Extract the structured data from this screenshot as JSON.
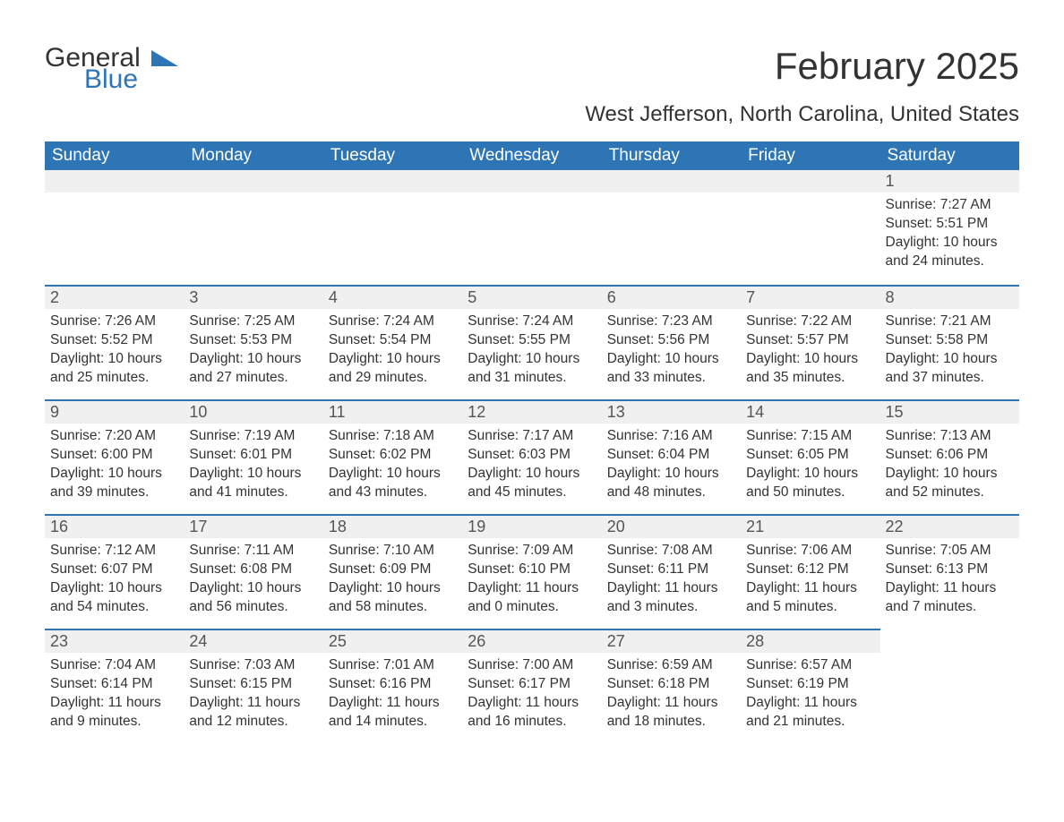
{
  "logo": {
    "text1": "General",
    "text2": "Blue",
    "color_dark": "#333333",
    "color_blue": "#2e75b6"
  },
  "title": "February 2025",
  "location": "West Jefferson, North Carolina, United States",
  "colors": {
    "header_bg": "#2e75b6",
    "header_text": "#ffffff",
    "daynum_bg": "#f0f0f0",
    "border_accent": "#2e75b6",
    "text": "#333333",
    "background": "#ffffff"
  },
  "font": {
    "family": "Arial",
    "title_size_pt": 32,
    "location_size_pt": 18,
    "header_size_pt": 14,
    "body_size_pt": 12
  },
  "day_headers": [
    "Sunday",
    "Monday",
    "Tuesday",
    "Wednesday",
    "Thursday",
    "Friday",
    "Saturday"
  ],
  "weeks": [
    [
      null,
      null,
      null,
      null,
      null,
      null,
      {
        "n": "1",
        "sunrise": "Sunrise: 7:27 AM",
        "sunset": "Sunset: 5:51 PM",
        "daylight": "Daylight: 10 hours and 24 minutes."
      }
    ],
    [
      {
        "n": "2",
        "sunrise": "Sunrise: 7:26 AM",
        "sunset": "Sunset: 5:52 PM",
        "daylight": "Daylight: 10 hours and 25 minutes."
      },
      {
        "n": "3",
        "sunrise": "Sunrise: 7:25 AM",
        "sunset": "Sunset: 5:53 PM",
        "daylight": "Daylight: 10 hours and 27 minutes."
      },
      {
        "n": "4",
        "sunrise": "Sunrise: 7:24 AM",
        "sunset": "Sunset: 5:54 PM",
        "daylight": "Daylight: 10 hours and 29 minutes."
      },
      {
        "n": "5",
        "sunrise": "Sunrise: 7:24 AM",
        "sunset": "Sunset: 5:55 PM",
        "daylight": "Daylight: 10 hours and 31 minutes."
      },
      {
        "n": "6",
        "sunrise": "Sunrise: 7:23 AM",
        "sunset": "Sunset: 5:56 PM",
        "daylight": "Daylight: 10 hours and 33 minutes."
      },
      {
        "n": "7",
        "sunrise": "Sunrise: 7:22 AM",
        "sunset": "Sunset: 5:57 PM",
        "daylight": "Daylight: 10 hours and 35 minutes."
      },
      {
        "n": "8",
        "sunrise": "Sunrise: 7:21 AM",
        "sunset": "Sunset: 5:58 PM",
        "daylight": "Daylight: 10 hours and 37 minutes."
      }
    ],
    [
      {
        "n": "9",
        "sunrise": "Sunrise: 7:20 AM",
        "sunset": "Sunset: 6:00 PM",
        "daylight": "Daylight: 10 hours and 39 minutes."
      },
      {
        "n": "10",
        "sunrise": "Sunrise: 7:19 AM",
        "sunset": "Sunset: 6:01 PM",
        "daylight": "Daylight: 10 hours and 41 minutes."
      },
      {
        "n": "11",
        "sunrise": "Sunrise: 7:18 AM",
        "sunset": "Sunset: 6:02 PM",
        "daylight": "Daylight: 10 hours and 43 minutes."
      },
      {
        "n": "12",
        "sunrise": "Sunrise: 7:17 AM",
        "sunset": "Sunset: 6:03 PM",
        "daylight": "Daylight: 10 hours and 45 minutes."
      },
      {
        "n": "13",
        "sunrise": "Sunrise: 7:16 AM",
        "sunset": "Sunset: 6:04 PM",
        "daylight": "Daylight: 10 hours and 48 minutes."
      },
      {
        "n": "14",
        "sunrise": "Sunrise: 7:15 AM",
        "sunset": "Sunset: 6:05 PM",
        "daylight": "Daylight: 10 hours and 50 minutes."
      },
      {
        "n": "15",
        "sunrise": "Sunrise: 7:13 AM",
        "sunset": "Sunset: 6:06 PM",
        "daylight": "Daylight: 10 hours and 52 minutes."
      }
    ],
    [
      {
        "n": "16",
        "sunrise": "Sunrise: 7:12 AM",
        "sunset": "Sunset: 6:07 PM",
        "daylight": "Daylight: 10 hours and 54 minutes."
      },
      {
        "n": "17",
        "sunrise": "Sunrise: 7:11 AM",
        "sunset": "Sunset: 6:08 PM",
        "daylight": "Daylight: 10 hours and 56 minutes."
      },
      {
        "n": "18",
        "sunrise": "Sunrise: 7:10 AM",
        "sunset": "Sunset: 6:09 PM",
        "daylight": "Daylight: 10 hours and 58 minutes."
      },
      {
        "n": "19",
        "sunrise": "Sunrise: 7:09 AM",
        "sunset": "Sunset: 6:10 PM",
        "daylight": "Daylight: 11 hours and 0 minutes."
      },
      {
        "n": "20",
        "sunrise": "Sunrise: 7:08 AM",
        "sunset": "Sunset: 6:11 PM",
        "daylight": "Daylight: 11 hours and 3 minutes."
      },
      {
        "n": "21",
        "sunrise": "Sunrise: 7:06 AM",
        "sunset": "Sunset: 6:12 PM",
        "daylight": "Daylight: 11 hours and 5 minutes."
      },
      {
        "n": "22",
        "sunrise": "Sunrise: 7:05 AM",
        "sunset": "Sunset: 6:13 PM",
        "daylight": "Daylight: 11 hours and 7 minutes."
      }
    ],
    [
      {
        "n": "23",
        "sunrise": "Sunrise: 7:04 AM",
        "sunset": "Sunset: 6:14 PM",
        "daylight": "Daylight: 11 hours and 9 minutes."
      },
      {
        "n": "24",
        "sunrise": "Sunrise: 7:03 AM",
        "sunset": "Sunset: 6:15 PM",
        "daylight": "Daylight: 11 hours and 12 minutes."
      },
      {
        "n": "25",
        "sunrise": "Sunrise: 7:01 AM",
        "sunset": "Sunset: 6:16 PM",
        "daylight": "Daylight: 11 hours and 14 minutes."
      },
      {
        "n": "26",
        "sunrise": "Sunrise: 7:00 AM",
        "sunset": "Sunset: 6:17 PM",
        "daylight": "Daylight: 11 hours and 16 minutes."
      },
      {
        "n": "27",
        "sunrise": "Sunrise: 6:59 AM",
        "sunset": "Sunset: 6:18 PM",
        "daylight": "Daylight: 11 hours and 18 minutes."
      },
      {
        "n": "28",
        "sunrise": "Sunrise: 6:57 AM",
        "sunset": "Sunset: 6:19 PM",
        "daylight": "Daylight: 11 hours and 21 minutes."
      },
      null
    ]
  ]
}
